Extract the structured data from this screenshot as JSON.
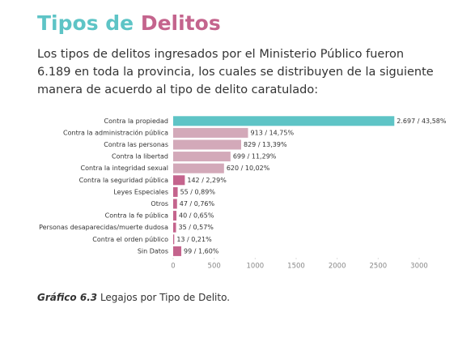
{
  "chart_data": {
    "type": "barh",
    "title": "Tipos de Delitos",
    "subtitle": "Los tipos de delitos ingresados por el Ministerio Público fueron 6.189 en toda la provincia, los cuales se distribuyen de la siguiente manera de acuerdo al tipo de delito caratulado:",
    "categories": [
      "Contra la propiedad",
      "Contra la administración pública",
      "Contra las personas",
      "Contra la libertad",
      "Contra la integridad sexual",
      "Contra la seguridad pública",
      "Leyes Especiales",
      "Otros",
      "Contra la fe pública",
      "Personas desaparecidas/muerte dudosa",
      "Contra el orden público",
      "Sin Datos"
    ],
    "values": [
      2697,
      913,
      829,
      699,
      620,
      142,
      55,
      47,
      40,
      35,
      13,
      99
    ],
    "value_labels": [
      "2.697 / 43,58%",
      "913 / 14,75%",
      "829 / 13,39%",
      "699 / 11,29%",
      "620 / 10,02%",
      "142 / 2,29%",
      "55 / 0,89%",
      "47 / 0,76%",
      "40 / 0,65%",
      "35 / 0,57%",
      "13 / 0,21%",
      "99 / 1,60%"
    ],
    "colors": [
      "#5ec4c6",
      "#d3a9b9",
      "#d3a9b9",
      "#d3a9b9",
      "#d3a9b9",
      "#c4648d",
      "#c4648d",
      "#c4648d",
      "#c4648d",
      "#c4648d",
      "#c4648d",
      "#c4648d"
    ],
    "xlim": [
      0,
      3000
    ],
    "xticks": [
      0,
      500,
      1000,
      1500,
      2000,
      2500,
      3000
    ],
    "caption_label": "Gráfico 6.3",
    "caption": "Legajos por Tipo de Delito."
  }
}
